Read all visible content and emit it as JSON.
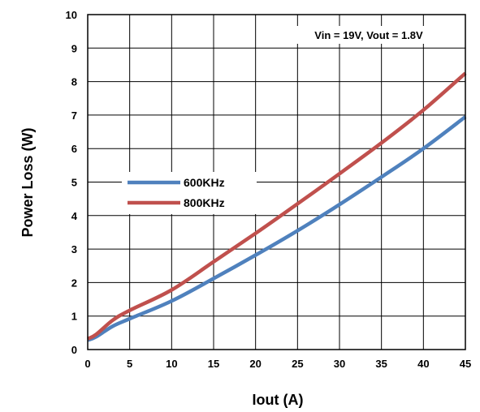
{
  "chart_data": {
    "type": "line",
    "xlabel": "Iout (A)",
    "ylabel": "Power Loss (W)",
    "xlim": [
      0,
      45
    ],
    "ylim": [
      0,
      10
    ],
    "xticks": [
      0,
      5,
      10,
      15,
      20,
      25,
      30,
      35,
      40,
      45
    ],
    "yticks": [
      0,
      1,
      2,
      3,
      4,
      5,
      6,
      7,
      8,
      9,
      10
    ],
    "grid": true,
    "legend_position": "middle-left",
    "annotation": "Vin = 19V, Vout = 1.8V",
    "series": [
      {
        "name": "600KHz",
        "color": "#4F81BD",
        "x": [
          0,
          1,
          3,
          5,
          10,
          15,
          20,
          25,
          30,
          35,
          40,
          45
        ],
        "y": [
          0.28,
          0.38,
          0.7,
          0.92,
          1.45,
          2.12,
          2.82,
          3.55,
          4.33,
          5.15,
          6.0,
          6.95
        ]
      },
      {
        "name": "800KHz",
        "color": "#C0504D",
        "x": [
          0,
          1,
          3,
          5,
          10,
          15,
          20,
          25,
          30,
          35,
          40,
          45
        ],
        "y": [
          0.32,
          0.45,
          0.88,
          1.17,
          1.78,
          2.62,
          3.47,
          4.35,
          5.25,
          6.17,
          7.15,
          8.25
        ]
      }
    ]
  }
}
